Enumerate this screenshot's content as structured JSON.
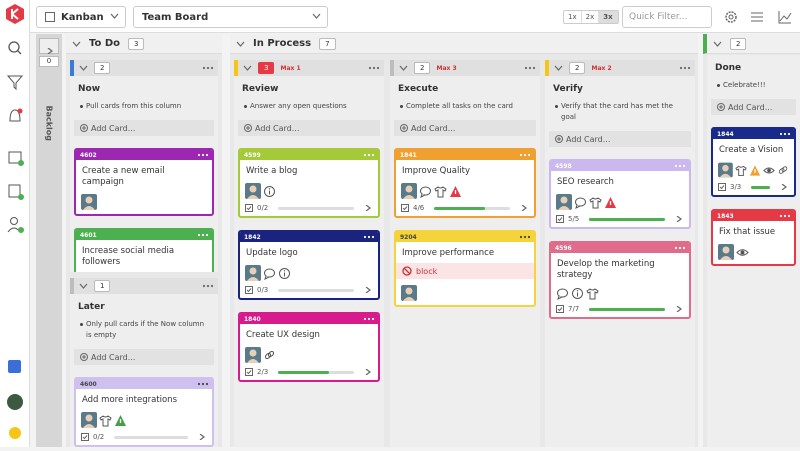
{
  "toolbar": {
    "view": "Kanban",
    "board": "Team Board",
    "zoom": [
      "1x",
      "2x",
      "3x"
    ],
    "filter_placeholder": "Quick Filter..."
  },
  "backlog": {
    "count": "0",
    "label": "Backlog"
  },
  "columns": [
    {
      "title": "To Do",
      "count": "3"
    },
    {
      "title": "In Process",
      "count": "7"
    },
    {
      "count": "2",
      "accent": "#4caf50"
    }
  ],
  "lanes": [
    {
      "title": "Now",
      "count": "2",
      "accent": "#3a7bd5",
      "description": "Pull cards from this column",
      "add": "Add Card...",
      "cards": [
        {
          "id": "4602",
          "title": "Create a new email campaign",
          "color": "#9c27b0",
          "icons": [
            "avatar"
          ]
        },
        {
          "id": "4601",
          "title": "Increase social media followers",
          "color": "#4caf50",
          "icons": [
            "avatar",
            "comment",
            "info"
          ]
        }
      ]
    },
    {
      "title": "Later",
      "count": "1",
      "accent": "#bdbdbd",
      "description": "Only pull cards if the Now column is empty",
      "add": "Add Card...",
      "cards": [
        {
          "id": "4600",
          "title": "Add more integrations",
          "color": "#cfc1ef",
          "icons": [
            "avatar",
            "shirt",
            "warning-green"
          ],
          "checklist": "0/2"
        }
      ]
    },
    {
      "title": "Review",
      "count": "3",
      "count_color": "#e53945",
      "limit": "Max 1",
      "accent": "#f5c518",
      "description": "Answer any open questions",
      "add": "Add Card...",
      "cards": [
        {
          "id": "4599",
          "title": "Write a blog",
          "color": "#a6c93a",
          "icons": [
            "avatar",
            "info"
          ],
          "checklist": "0/2"
        },
        {
          "id": "1842",
          "title": "Update logo",
          "color": "#1a237e",
          "icons": [
            "avatar",
            "comment",
            "info"
          ],
          "checklist": "0/3"
        },
        {
          "id": "1840",
          "title": "Create UX design",
          "color": "#d81b8c",
          "icons": [
            "avatar",
            "link"
          ],
          "checklist": "2/3"
        }
      ]
    },
    {
      "title": "Execute",
      "count": "2",
      "limit": "Max 3",
      "accent": "#bdbdbd",
      "description": "Complete all tasks on the card",
      "add": "Add Card...",
      "cards": [
        {
          "id": "1841",
          "title": "Improve Quality",
          "color": "#f0a030",
          "icons": [
            "avatar",
            "comment",
            "shirt",
            "warning"
          ],
          "checklist": "4/6"
        },
        {
          "id": "9204",
          "title": "Improve performance",
          "color": "#f5d33a",
          "block": "block",
          "icons": [
            "avatar"
          ]
        }
      ]
    },
    {
      "title": "Verify",
      "count": "2",
      "limit": "Max 2",
      "accent": "#f5c518",
      "description": "Verify that the card has met the goal",
      "add": "Add Card...",
      "cards": [
        {
          "id": "4598",
          "title": "SEO research",
          "color": "#cbb8ee",
          "icons": [
            "avatar",
            "comment",
            "shirt",
            "warning"
          ],
          "checklist": "5/5"
        },
        {
          "id": "4596",
          "title": "Develop the marketing strategy",
          "color": "#e06c8c",
          "icons": [
            "comment",
            "info",
            "shirt"
          ],
          "checklist": "7/7"
        }
      ]
    },
    {
      "title": "Done",
      "description": "Celebrate!!!",
      "add": "Add Card...",
      "cards": [
        {
          "id": "1844",
          "title": "Create a Vision",
          "color": "#1a2a8a",
          "icons": [
            "avatar",
            "shirt",
            "warning-orange",
            "eye",
            "link"
          ],
          "checklist": "3/3"
        },
        {
          "id": "1843",
          "title": "Fix that issue",
          "color": "#e53945",
          "icons": [
            "avatar",
            "eye"
          ]
        }
      ]
    }
  ]
}
